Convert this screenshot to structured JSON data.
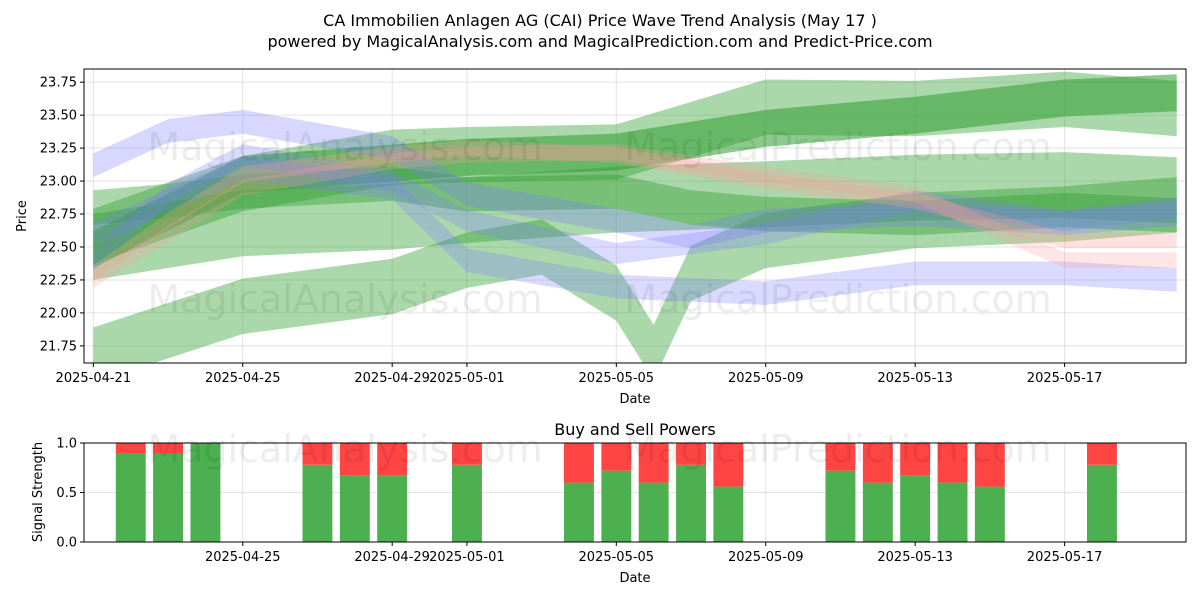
{
  "title_line1": "CA Immobilien Anlagen AG (CAI) Price Wave Trend Analysis (May 17 )",
  "title_line2": "powered by MagicalAnalysis.com and MagicalPrediction.com and Predict-Price.com",
  "watermarks": [
    "MagicalAnalysis.com",
    "MagicalPrediction.com"
  ],
  "colors": {
    "green": "#2e9e2e",
    "blue": "#7b7bff",
    "red": "#ff9a9a",
    "bar_buy": "#4caf50",
    "bar_sell": "#ff4444"
  },
  "chart_data": [
    {
      "type": "area",
      "xlabel": "Date",
      "ylabel": "Price",
      "ylim": [
        21.62,
        23.85
      ],
      "xlim": [
        "2025-04-20T18:00",
        "2025-05-20T06:00"
      ],
      "yticks": [
        "21.75",
        "22.00",
        "22.25",
        "22.50",
        "22.75",
        "23.00",
        "23.25",
        "23.50",
        "23.75"
      ],
      "xticks": [
        "2025-04-21",
        "2025-04-25",
        "2025-04-29",
        "2025-05-01",
        "2025-05-05",
        "2025-05-09",
        "2025-05-13",
        "2025-05-17"
      ],
      "grid": true,
      "series": [
        {
          "color": "green",
          "x": [
            "2025-04-21",
            "2025-04-25",
            "2025-05-01",
            "2025-05-05",
            "2025-05-09",
            "2025-05-13",
            "2025-05-17",
            "2025-05-20"
          ],
          "y": [
            22.48,
            23.05,
            23.18,
            23.22,
            23.4,
            23.5,
            23.63,
            23.67
          ],
          "width": 0.28,
          "opacity": 0.55
        },
        {
          "color": "green",
          "x": [
            "2025-04-21",
            "2025-04-25",
            "2025-04-29",
            "2025-05-01",
            "2025-05-05",
            "2025-05-09",
            "2025-05-13",
            "2025-05-17",
            "2025-05-20"
          ],
          "y": [
            22.58,
            22.98,
            23.18,
            23.2,
            23.22,
            23.56,
            23.55,
            23.62,
            23.55
          ],
          "width": 0.42,
          "opacity": 0.4
        },
        {
          "color": "green",
          "x": [
            "2025-04-21",
            "2025-04-25",
            "2025-04-29",
            "2025-05-01",
            "2025-05-05",
            "2025-05-09",
            "2025-05-13",
            "2025-05-17",
            "2025-05-20"
          ],
          "y": [
            22.5,
            22.68,
            22.73,
            22.78,
            22.86,
            22.9,
            22.95,
            22.97,
            22.93
          ],
          "width": 0.5,
          "opacity": 0.4
        },
        {
          "color": "green",
          "x": [
            "2025-04-21",
            "2025-04-25",
            "2025-04-29",
            "2025-05-01",
            "2025-05-03",
            "2025-05-05",
            "2025-05-06",
            "2025-05-07",
            "2025-05-09",
            "2025-05-13",
            "2025-05-17",
            "2025-05-20"
          ],
          "y": [
            21.68,
            22.05,
            22.2,
            22.4,
            22.5,
            22.15,
            21.7,
            22.3,
            22.55,
            22.7,
            22.75,
            22.82
          ],
          "width": 0.42,
          "opacity": 0.4
        },
        {
          "color": "green",
          "x": [
            "2025-04-21",
            "2025-04-23",
            "2025-04-25",
            "2025-04-29",
            "2025-05-01",
            "2025-05-05",
            "2025-05-07",
            "2025-05-09",
            "2025-05-13",
            "2025-05-17",
            "2025-05-20"
          ],
          "y": [
            22.8,
            22.85,
            22.92,
            22.98,
            22.9,
            22.92,
            22.8,
            22.75,
            22.72,
            22.78,
            22.74
          ],
          "width": 0.26,
          "opacity": 0.4
        },
        {
          "color": "blue",
          "x": [
            "2025-04-21",
            "2025-04-23",
            "2025-04-25",
            "2025-04-29",
            "2025-05-01",
            "2025-05-05",
            "2025-05-07",
            "2025-05-09",
            "2025-05-13",
            "2025-05-17",
            "2025-05-20"
          ],
          "y": [
            23.12,
            23.38,
            23.45,
            23.25,
            22.9,
            22.7,
            22.58,
            22.7,
            22.75,
            22.68,
            22.75
          ],
          "width": 0.18,
          "opacity": 0.3
        },
        {
          "color": "blue",
          "x": [
            "2025-04-21",
            "2025-04-25",
            "2025-04-29",
            "2025-05-01",
            "2025-05-05",
            "2025-05-09",
            "2025-05-13",
            "2025-05-17",
            "2025-05-20"
          ],
          "y": [
            22.6,
            23.1,
            22.95,
            22.4,
            22.2,
            22.15,
            22.3,
            22.3,
            22.25
          ],
          "width": 0.18,
          "opacity": 0.28
        },
        {
          "color": "blue",
          "x": [
            "2025-04-21",
            "2025-04-23",
            "2025-04-25",
            "2025-04-29",
            "2025-05-01",
            "2025-05-05",
            "2025-05-09",
            "2025-05-13",
            "2025-05-17",
            "2025-05-20"
          ],
          "y": [
            22.4,
            22.9,
            23.2,
            23.0,
            22.7,
            22.45,
            22.6,
            22.85,
            22.7,
            22.8
          ],
          "width": 0.16,
          "opacity": 0.28
        },
        {
          "color": "red",
          "x": [
            "2025-04-21",
            "2025-04-23",
            "2025-04-25",
            "2025-04-29",
            "2025-05-01",
            "2025-05-05",
            "2025-05-09",
            "2025-05-13",
            "2025-05-17",
            "2025-05-20"
          ],
          "y": [
            22.3,
            22.7,
            23.05,
            23.2,
            23.25,
            23.2,
            23.0,
            22.85,
            22.55,
            22.55
          ],
          "width": 0.12,
          "opacity": 0.3
        },
        {
          "color": "red",
          "x": [
            "2025-04-21",
            "2025-04-25",
            "2025-04-29",
            "2025-05-01",
            "2025-05-05",
            "2025-05-09",
            "2025-05-13",
            "2025-05-17",
            "2025-05-20"
          ],
          "y": [
            22.25,
            22.95,
            23.15,
            23.2,
            23.22,
            23.05,
            22.9,
            22.4,
            22.4
          ],
          "width": 0.12,
          "opacity": 0.25
        }
      ]
    },
    {
      "type": "bar",
      "title": "Buy and Sell Powers",
      "xlabel": "Date",
      "ylabel": "Signal Strength",
      "ylim": [
        0,
        1
      ],
      "xlim": [
        "2025-04-20T18:00",
        "2025-05-20T06:00"
      ],
      "yticks": [
        "0.0",
        "0.5",
        "1.0"
      ],
      "xticks": [
        "2025-04-25",
        "2025-04-29",
        "2025-05-01",
        "2025-05-05",
        "2025-05-09",
        "2025-05-13",
        "2025-05-17"
      ],
      "x": [
        "2025-04-22",
        "2025-04-23",
        "2025-04-24",
        "2025-04-27",
        "2025-04-28",
        "2025-04-29",
        "2025-05-01",
        "2025-05-04",
        "2025-05-05",
        "2025-05-06",
        "2025-05-07",
        "2025-05-08",
        "2025-05-11",
        "2025-05-12",
        "2025-05-13",
        "2025-05-14",
        "2025-05-15",
        "2025-05-18"
      ],
      "series": [
        {
          "name": "buy",
          "values": [
            0.89,
            0.89,
            1.0,
            0.78,
            0.67,
            0.67,
            0.78,
            0.6,
            0.72,
            0.6,
            0.78,
            0.56,
            0.72,
            0.6,
            0.67,
            0.6,
            0.56,
            0.78
          ]
        },
        {
          "name": "sell",
          "values": [
            0.11,
            0.11,
            0.0,
            0.22,
            0.33,
            0.33,
            0.22,
            0.4,
            0.28,
            0.4,
            0.22,
            0.44,
            0.28,
            0.4,
            0.33,
            0.4,
            0.44,
            0.22
          ]
        }
      ]
    }
  ]
}
